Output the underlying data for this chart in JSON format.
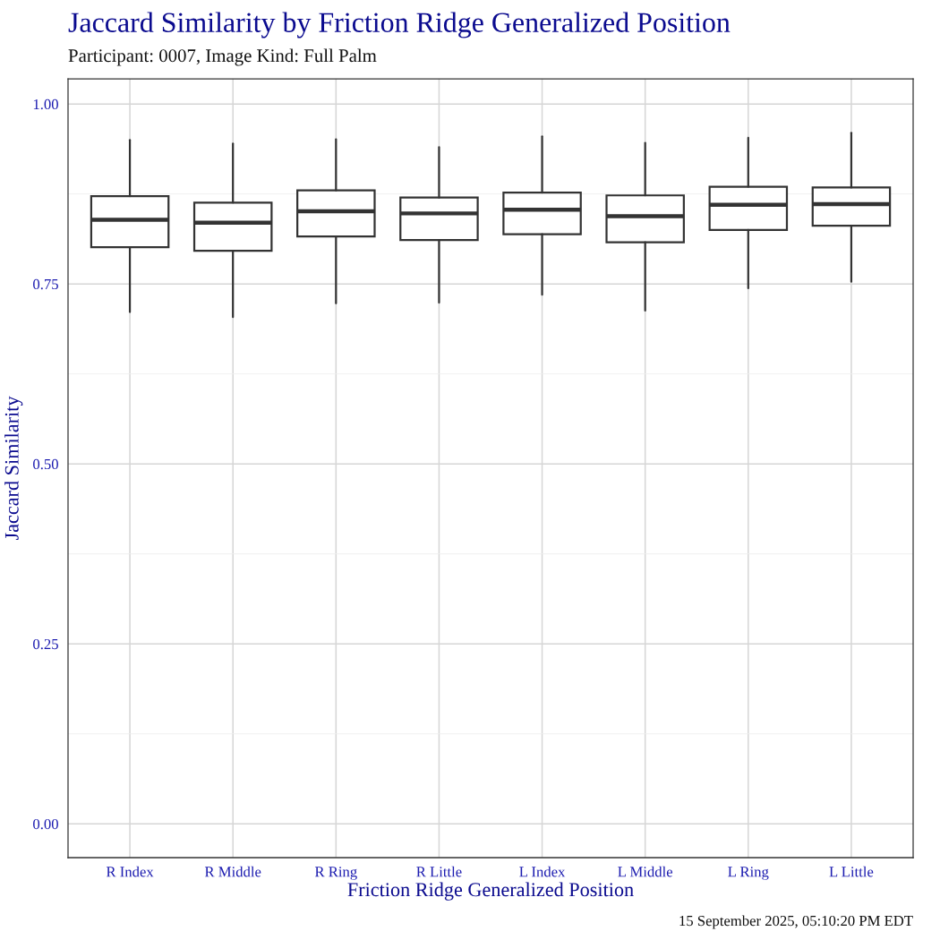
{
  "chart_data": {
    "type": "box",
    "title": "Jaccard Similarity by Friction Ridge Generalized Position",
    "subtitle": "Participant: 0007, Image Kind: Full Palm",
    "xlabel": "Friction Ridge Generalized Position",
    "ylabel": "Jaccard Similarity",
    "annotations": [
      "15 September 2025, 05:10:20 PM EDT"
    ],
    "categories": [
      "R Index",
      "R Middle",
      "R Ring",
      "R Little",
      "L Index",
      "L Middle",
      "L Ring",
      "L Little"
    ],
    "color": "#333333",
    "boxes": [
      {
        "low": 0.711,
        "q1": 0.801,
        "median": 0.839,
        "q3": 0.872,
        "high": 0.95
      },
      {
        "low": 0.704,
        "q1": 0.796,
        "median": 0.835,
        "q3": 0.863,
        "high": 0.945
      },
      {
        "low": 0.723,
        "q1": 0.816,
        "median": 0.851,
        "q3": 0.88,
        "high": 0.951
      },
      {
        "low": 0.724,
        "q1": 0.811,
        "median": 0.848,
        "q3": 0.87,
        "high": 0.94
      },
      {
        "low": 0.735,
        "q1": 0.819,
        "median": 0.853,
        "q3": 0.877,
        "high": 0.955
      },
      {
        "low": 0.713,
        "q1": 0.808,
        "median": 0.844,
        "q3": 0.873,
        "high": 0.946
      },
      {
        "low": 0.744,
        "q1": 0.825,
        "median": 0.86,
        "q3": 0.885,
        "high": 0.953
      },
      {
        "low": 0.753,
        "q1": 0.831,
        "median": 0.861,
        "q3": 0.884,
        "high": 0.96
      }
    ],
    "ylim": [
      -0.047,
      1.035
    ],
    "yticks": [
      {
        "value": 0,
        "label": "0.00"
      },
      {
        "value": 0.25,
        "label": "0.25"
      },
      {
        "value": 0.5,
        "label": "0.50"
      },
      {
        "value": 0.75,
        "label": "0.75"
      },
      {
        "value": 1,
        "label": "1.00"
      }
    ],
    "grid": true,
    "legend": false
  }
}
